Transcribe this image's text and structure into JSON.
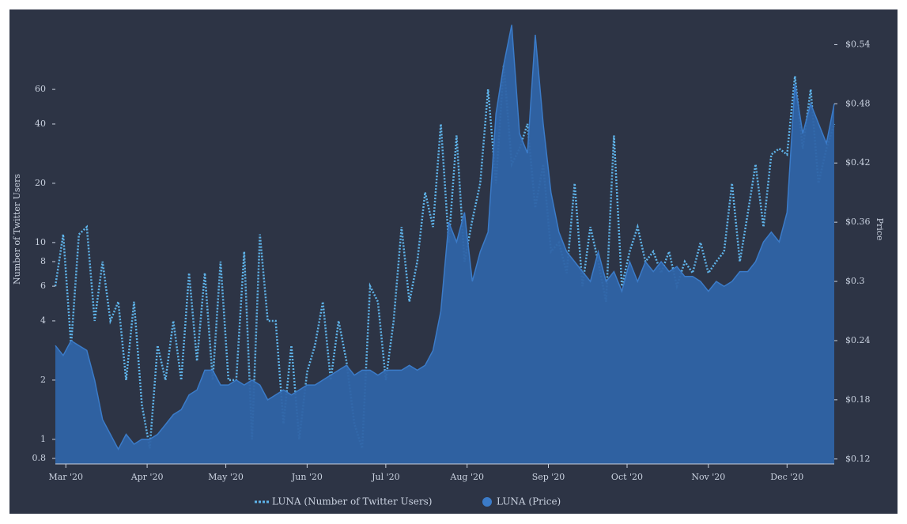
{
  "chart_data": {
    "type": "line",
    "x": [
      57,
      60,
      63,
      66,
      69,
      72,
      75,
      78,
      81,
      84,
      87,
      90,
      93,
      96,
      99,
      102,
      105,
      108,
      111,
      114,
      117,
      120,
      123,
      126,
      129,
      132,
      135,
      138,
      141,
      144,
      147,
      150,
      153,
      156,
      159,
      162,
      165,
      168,
      171,
      174,
      177,
      180,
      183,
      186,
      189,
      192,
      195,
      198,
      201,
      204,
      207,
      210,
      213,
      216,
      219,
      222,
      225,
      228,
      231,
      234,
      237,
      240,
      243,
      246,
      249,
      252,
      255,
      258,
      261,
      264,
      267,
      270,
      273,
      276,
      279,
      282,
      285,
      288,
      291,
      294,
      297,
      300,
      303,
      306,
      309,
      312,
      315,
      318,
      321,
      324,
      327,
      330,
      333,
      336,
      339,
      342,
      345,
      348,
      351,
      354
    ],
    "xlim": [
      57,
      354
    ],
    "xticks": [
      {
        "value": 61,
        "label": "Mar '20"
      },
      {
        "value": 92,
        "label": "Apr '20"
      },
      {
        "value": 122,
        "label": "May '20"
      },
      {
        "value": 153,
        "label": "Jun '20"
      },
      {
        "value": 183,
        "label": "Jul '20"
      },
      {
        "value": 214,
        "label": "Aug '20"
      },
      {
        "value": 245,
        "label": "Sep '20"
      },
      {
        "value": 275,
        "label": "Oct '20"
      },
      {
        "value": 306,
        "label": "Nov '20"
      },
      {
        "value": 336,
        "label": "Dec '20"
      }
    ],
    "y_label": "Number of Twitter Users",
    "y2_label": "Price",
    "ylog": true,
    "ylim": [
      0.75,
      150
    ],
    "yticks": [
      0.8,
      1,
      2,
      4,
      6,
      8,
      10,
      20,
      40,
      60
    ],
    "y2lim": [
      0.115,
      0.574
    ],
    "y2ticks": [
      {
        "value": 0.12,
        "label": "$0.12"
      },
      {
        "value": 0.18,
        "label": "$0.18"
      },
      {
        "value": 0.24,
        "label": "$0.24"
      },
      {
        "value": 0.3,
        "label": "$0.3"
      },
      {
        "value": 0.36,
        "label": "$0.36"
      },
      {
        "value": 0.42,
        "label": "$0.42"
      },
      {
        "value": 0.48,
        "label": "$0.48"
      },
      {
        "value": 0.54,
        "label": "$0.54"
      }
    ],
    "series": [
      {
        "name": "LUNA (Number of Twitter Users)",
        "color": "#5fb4ea",
        "style": "dotted",
        "values": [
          6,
          11,
          3,
          11,
          12,
          4,
          8,
          4,
          5,
          2,
          5,
          1.5,
          0.9,
          3,
          2,
          4,
          2,
          7,
          2.5,
          7,
          2,
          8,
          2,
          2,
          9,
          1,
          11,
          4,
          4,
          1.2,
          3,
          1,
          2.2,
          3,
          5,
          2,
          4,
          2.5,
          1.2,
          0.9,
          6,
          5,
          2,
          4,
          12,
          5,
          8,
          18,
          12,
          40,
          10,
          35,
          8,
          13,
          20,
          60,
          20,
          80,
          25,
          30,
          40,
          15,
          25,
          9,
          10,
          7,
          20,
          6,
          12,
          8,
          5,
          35,
          6,
          9,
          12,
          8,
          9,
          7,
          9,
          6,
          8,
          7,
          10,
          7,
          8,
          9,
          20,
          8,
          14,
          25,
          12,
          28,
          30,
          28,
          70,
          30,
          60,
          20,
          30,
          40
        ]
      },
      {
        "name": "LUNA (Price)",
        "color": "#2f64a6",
        "style": "area",
        "axis": "y2",
        "values": [
          0.235,
          0.225,
          0.24,
          0.235,
          0.23,
          0.2,
          0.16,
          0.145,
          0.13,
          0.145,
          0.135,
          0.14,
          0.14,
          0.145,
          0.155,
          0.165,
          0.17,
          0.185,
          0.19,
          0.21,
          0.21,
          0.195,
          0.195,
          0.2,
          0.195,
          0.2,
          0.195,
          0.18,
          0.185,
          0.19,
          0.185,
          0.19,
          0.195,
          0.195,
          0.2,
          0.205,
          0.21,
          0.215,
          0.205,
          0.21,
          0.21,
          0.205,
          0.21,
          0.21,
          0.21,
          0.215,
          0.21,
          0.215,
          0.23,
          0.27,
          0.36,
          0.34,
          0.37,
          0.3,
          0.33,
          0.35,
          0.47,
          0.52,
          0.56,
          0.45,
          0.43,
          0.55,
          0.46,
          0.39,
          0.35,
          0.33,
          0.32,
          0.31,
          0.3,
          0.33,
          0.3,
          0.31,
          0.29,
          0.32,
          0.3,
          0.32,
          0.31,
          0.32,
          0.31,
          0.315,
          0.305,
          0.305,
          0.3,
          0.29,
          0.3,
          0.295,
          0.3,
          0.31,
          0.31,
          0.32,
          0.34,
          0.35,
          0.34,
          0.37,
          0.5,
          0.45,
          0.48,
          0.46,
          0.44,
          0.48
        ]
      }
    ]
  }
}
